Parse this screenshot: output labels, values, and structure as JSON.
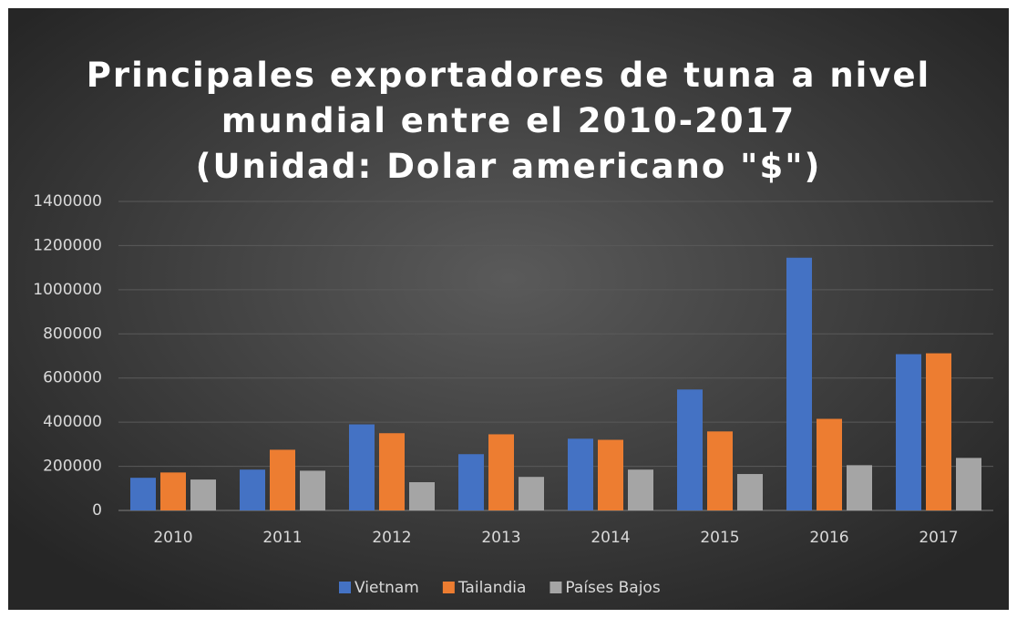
{
  "chart_data": {
    "type": "bar",
    "title": "Principales exportadores de tuna a nivel\nmundial entre el 2010-2017\n(Unidad: Dolar americano \"$\")",
    "categories": [
      "2010",
      "2011",
      "2012",
      "2013",
      "2014",
      "2015",
      "2016",
      "2017"
    ],
    "series": [
      {
        "name": "Vietnam",
        "color": "#4472c4",
        "values": [
          148000,
          185000,
          390000,
          255000,
          325000,
          548000,
          1145000,
          708000
        ]
      },
      {
        "name": "Tailandia",
        "color": "#ed7d31",
        "values": [
          172000,
          275000,
          350000,
          345000,
          320000,
          358000,
          415000,
          712000
        ]
      },
      {
        "name": "Países Bajos",
        "color": "#a5a5a5",
        "values": [
          140000,
          180000,
          128000,
          152000,
          185000,
          165000,
          205000,
          238000
        ]
      }
    ],
    "ylim": [
      0,
      1400000
    ],
    "yticks": [
      0,
      200000,
      400000,
      600000,
      800000,
      1000000,
      1200000,
      1400000
    ],
    "grid": true,
    "legend": "bottom"
  }
}
